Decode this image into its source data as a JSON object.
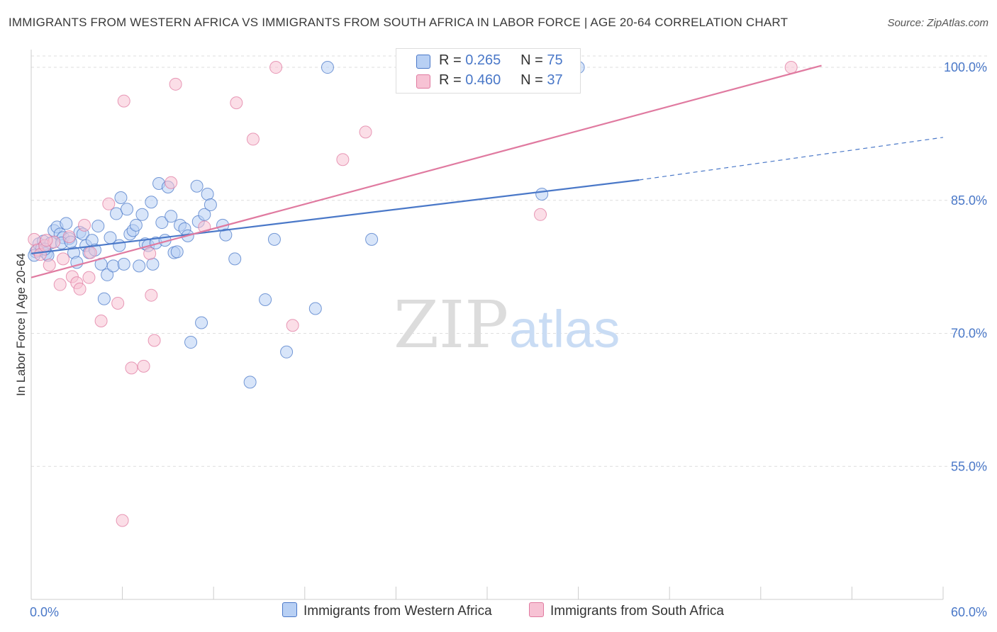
{
  "title": "IMMIGRANTS FROM WESTERN AFRICA VS IMMIGRANTS FROM SOUTH AFRICA IN LABOR FORCE | AGE 20-64 CORRELATION CHART",
  "source": "Source: ZipAtlas.com",
  "watermark": {
    "zip": "ZIP",
    "atlas": "atlas"
  },
  "legend_top": [
    {
      "r_label": "R =",
      "r_value": "0.265",
      "n_label": "N =",
      "n_value": "75"
    },
    {
      "r_label": "R =",
      "r_value": "0.460",
      "n_label": "N =",
      "n_value": "37"
    }
  ],
  "chart_data": {
    "type": "scatter",
    "title": "IMMIGRANTS FROM WESTERN AFRICA VS IMMIGRANTS FROM SOUTH AFRICA IN LABOR FORCE | AGE 20-64 CORRELATION CHART",
    "xlabel": "",
    "ylabel": "In Labor Force | Age 20-64",
    "xlim": [
      0,
      60
    ],
    "ylim": [
      40,
      102
    ],
    "x_tick_labels": [
      "0.0%",
      "60.0%"
    ],
    "y_ticks": [
      55,
      70,
      85,
      100
    ],
    "y_tick_labels": [
      "55.0%",
      "70.0%",
      "85.0%",
      "100.0%"
    ],
    "grid": true,
    "legend_position": "bottom",
    "colors": {
      "western_africa": "#4a78c8",
      "south_africa": "#e07aa0",
      "blue_fill": "#b8d0f4",
      "pink_fill": "#f7c2d4"
    },
    "series": [
      {
        "name": "Immigrants from Western Africa",
        "color": "#4a78c8",
        "trend": {
          "x": [
            0,
            40
          ],
          "y": [
            79.0,
            87.3
          ],
          "dashed_to": [
            60,
            92.1
          ]
        },
        "points": [
          [
            0.3,
            79.2
          ],
          [
            0.5,
            80.1
          ],
          [
            0.7,
            79.6
          ],
          [
            0.8,
            80.4
          ],
          [
            1.0,
            79.0
          ],
          [
            1.1,
            78.8
          ],
          [
            1.3,
            80.2
          ],
          [
            1.5,
            81.6
          ],
          [
            1.7,
            82.0
          ],
          [
            1.9,
            81.2
          ],
          [
            2.1,
            80.8
          ],
          [
            2.3,
            82.4
          ],
          [
            2.5,
            80.7
          ],
          [
            2.8,
            79.1
          ],
          [
            3.0,
            78.0
          ],
          [
            3.2,
            81.4
          ],
          [
            3.4,
            81.2
          ],
          [
            3.6,
            79.9
          ],
          [
            3.8,
            79.1
          ],
          [
            4.0,
            80.5
          ],
          [
            4.2,
            79.4
          ],
          [
            4.4,
            82.1
          ],
          [
            4.6,
            77.8
          ],
          [
            4.8,
            73.9
          ],
          [
            5.0,
            76.6
          ],
          [
            5.2,
            80.8
          ],
          [
            5.4,
            77.6
          ],
          [
            5.6,
            83.5
          ],
          [
            5.8,
            79.9
          ],
          [
            5.9,
            85.3
          ],
          [
            6.1,
            77.8
          ],
          [
            6.3,
            84.0
          ],
          [
            6.5,
            81.2
          ],
          [
            6.7,
            81.6
          ],
          [
            6.9,
            82.2
          ],
          [
            7.1,
            77.6
          ],
          [
            7.3,
            83.4
          ],
          [
            7.5,
            80.1
          ],
          [
            7.7,
            79.9
          ],
          [
            7.9,
            84.8
          ],
          [
            8.0,
            77.8
          ],
          [
            8.2,
            80.2
          ],
          [
            8.4,
            86.9
          ],
          [
            8.6,
            82.5
          ],
          [
            8.8,
            80.5
          ],
          [
            9.0,
            86.5
          ],
          [
            9.2,
            83.2
          ],
          [
            9.4,
            79.1
          ],
          [
            9.6,
            79.2
          ],
          [
            9.8,
            82.2
          ],
          [
            10.1,
            81.8
          ],
          [
            10.3,
            81.0
          ],
          [
            10.5,
            69.0
          ],
          [
            10.9,
            86.6
          ],
          [
            11.0,
            82.6
          ],
          [
            11.2,
            71.2
          ],
          [
            11.4,
            83.4
          ],
          [
            11.6,
            85.7
          ],
          [
            11.8,
            84.5
          ],
          [
            12.6,
            82.2
          ],
          [
            12.8,
            81.1
          ],
          [
            13.4,
            78.4
          ],
          [
            14.4,
            64.5
          ],
          [
            15.4,
            73.8
          ],
          [
            16.0,
            80.6
          ],
          [
            16.8,
            67.9
          ],
          [
            18.7,
            72.8
          ],
          [
            19.5,
            100.0
          ],
          [
            22.4,
            80.6
          ],
          [
            33.6,
            85.7
          ],
          [
            36.0,
            100.0
          ],
          [
            0.2,
            78.8
          ],
          [
            0.9,
            79.5
          ],
          [
            2.0,
            80.2
          ],
          [
            2.6,
            80.3
          ]
        ]
      },
      {
        "name": "Immigrants from South Africa",
        "color": "#e07aa0",
        "trend": {
          "x": [
            0,
            52
          ],
          "y": [
            76.3,
            100.2
          ]
        },
        "points": [
          [
            0.2,
            80.6
          ],
          [
            0.4,
            79.4
          ],
          [
            0.6,
            78.9
          ],
          [
            0.9,
            79.9
          ],
          [
            1.2,
            77.7
          ],
          [
            1.5,
            80.3
          ],
          [
            1.9,
            75.5
          ],
          [
            2.1,
            78.4
          ],
          [
            2.5,
            80.9
          ],
          [
            2.7,
            76.4
          ],
          [
            3.0,
            75.7
          ],
          [
            3.2,
            75.0
          ],
          [
            3.5,
            82.2
          ],
          [
            3.8,
            76.3
          ],
          [
            3.9,
            79.1
          ],
          [
            4.6,
            71.4
          ],
          [
            5.1,
            84.6
          ],
          [
            5.7,
            73.4
          ],
          [
            6.0,
            48.9
          ],
          [
            6.1,
            96.2
          ],
          [
            6.6,
            66.1
          ],
          [
            7.4,
            66.3
          ],
          [
            7.8,
            79.0
          ],
          [
            7.9,
            74.3
          ],
          [
            8.1,
            69.2
          ],
          [
            9.2,
            87.0
          ],
          [
            9.5,
            98.1
          ],
          [
            11.4,
            82.0
          ],
          [
            13.5,
            96.0
          ],
          [
            14.6,
            91.9
          ],
          [
            16.1,
            100.0
          ],
          [
            17.2,
            70.9
          ],
          [
            20.5,
            89.6
          ],
          [
            22.0,
            92.7
          ],
          [
            33.5,
            83.4
          ],
          [
            50.0,
            100.0
          ],
          [
            1.0,
            80.5
          ]
        ]
      }
    ]
  },
  "legend_bottom": [
    "Immigrants from Western Africa",
    "Immigrants from South Africa"
  ]
}
